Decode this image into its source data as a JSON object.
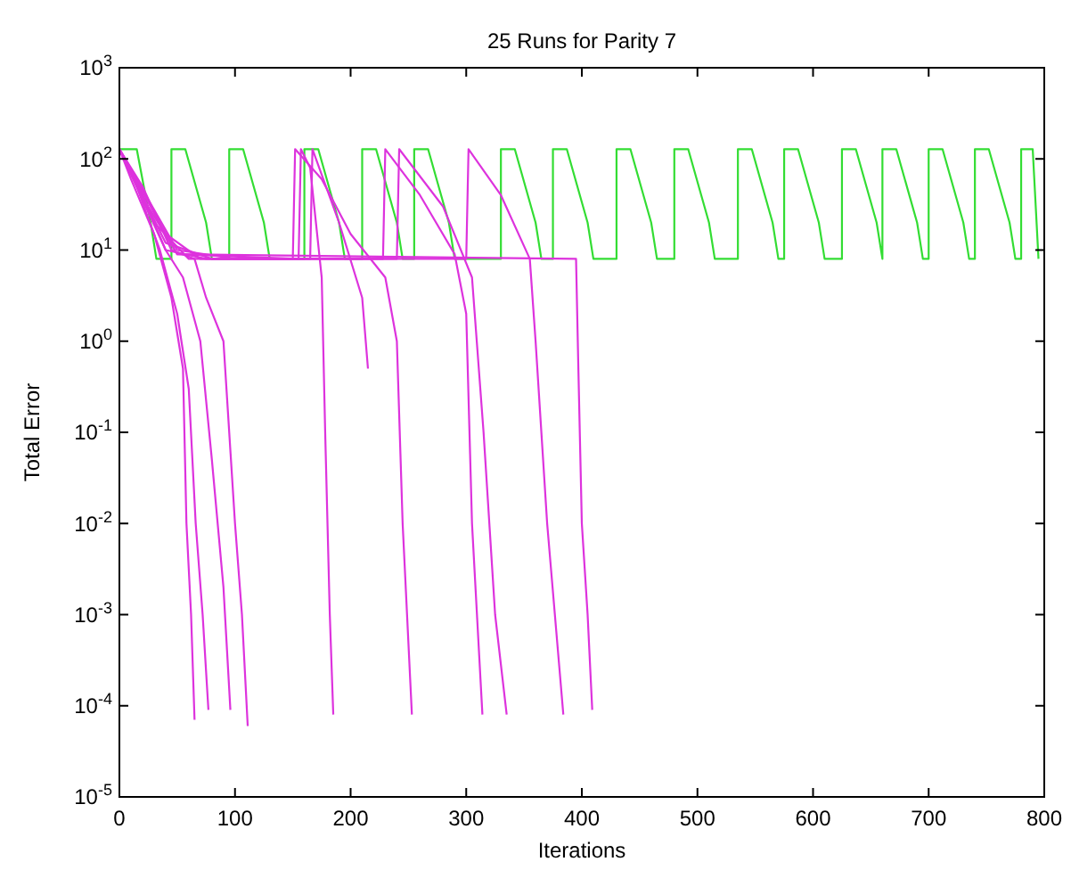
{
  "chart_data": {
    "type": "line",
    "title": "25 Runs for Parity 7",
    "xlabel": "Iterations",
    "ylabel": "Total Error",
    "log": "y",
    "grid": false,
    "marker": "none",
    "line_style": "solid",
    "xlim": [
      0,
      800
    ],
    "xticks": [
      0,
      100,
      200,
      300,
      400,
      500,
      600,
      700,
      800
    ],
    "ylim": [
      1e-05,
      1000
    ],
    "yticks": [
      {
        "value": 1e-05,
        "label": "10$^{-5}$"
      },
      {
        "value": 0.0001,
        "label": "10$^{-4}$"
      },
      {
        "value": 0.001,
        "label": "10$^{-3}$"
      },
      {
        "value": 0.01,
        "label": "10$^{-2}$"
      },
      {
        "value": 0.1,
        "label": "10$^{-1}$"
      },
      {
        "value": 1,
        "label": "10$^{0}$"
      },
      {
        "value": 10,
        "label": "10$^{1}$"
      },
      {
        "value": 100,
        "label": "10$^{2}$"
      },
      {
        "value": 1000,
        "label": "10$^{3}$"
      }
    ],
    "series": [
      {
        "color": "#33dd33",
        "x": [
          0,
          15,
          27,
          32,
          45,
          45,
          57,
          75,
          80,
          95,
          95,
          107,
          125,
          130,
          160,
          160,
          172,
          190,
          195,
          210,
          210,
          222,
          240,
          245,
          255,
          255,
          267,
          285,
          290,
          330,
          330,
          342,
          360,
          365,
          375,
          375,
          387,
          405,
          410,
          430,
          430,
          442,
          460,
          465,
          480,
          480,
          492,
          510,
          515,
          535,
          535,
          547,
          565,
          570,
          575,
          575,
          587,
          605,
          610,
          625,
          625,
          637,
          655,
          660,
          660,
          660,
          672,
          690,
          695,
          700,
          700,
          712,
          730,
          735,
          740,
          740,
          752,
          770,
          775,
          780,
          780,
          790,
          795
        ],
        "values": [
          128,
          128,
          20,
          8,
          8,
          128,
          128,
          20,
          8,
          8,
          128,
          128,
          20,
          8,
          8,
          128,
          128,
          20,
          8,
          8,
          128,
          128,
          20,
          8,
          8,
          128,
          128,
          20,
          8,
          8,
          128,
          128,
          20,
          8,
          8,
          128,
          128,
          20,
          8,
          8,
          128,
          128,
          20,
          8,
          8,
          128,
          128,
          20,
          8,
          8,
          128,
          128,
          20,
          8,
          8,
          128,
          128,
          20,
          8,
          8,
          128,
          128,
          20,
          8,
          8,
          128,
          128,
          20,
          8,
          8,
          128,
          128,
          20,
          8,
          8,
          128,
          128,
          20,
          8,
          8,
          128,
          128,
          8
        ]
      },
      {
        "color": "#dd33dd",
        "x": [
          0,
          10,
          30,
          45,
          55,
          58,
          62,
          65
        ],
        "values": [
          128,
          60,
          15,
          3,
          0.5,
          0.01,
          0.001,
          7e-05
        ]
      },
      {
        "color": "#dd33dd",
        "x": [
          0,
          15,
          35,
          50,
          60,
          66,
          72,
          77
        ],
        "values": [
          128,
          50,
          10,
          2,
          0.3,
          0.01,
          0.001,
          9e-05
        ]
      },
      {
        "color": "#dd33dd",
        "x": [
          0,
          20,
          40,
          55,
          70,
          80,
          90,
          96
        ],
        "values": [
          128,
          40,
          10,
          5,
          1,
          0.05,
          0.002,
          9e-05
        ]
      },
      {
        "color": "#dd33dd",
        "x": [
          0,
          20,
          45,
          65,
          75,
          90,
          100,
          106,
          111
        ],
        "values": [
          128,
          50,
          10,
          8,
          3,
          1,
          0.01,
          0.001,
          6e-05
        ]
      },
      {
        "color": "#dd33dd",
        "x": [
          0,
          25,
          50,
          155,
          157,
          165,
          175,
          178,
          182,
          185
        ],
        "values": [
          128,
          30,
          9,
          8,
          128,
          80,
          5,
          0.1,
          0.001,
          8e-05
        ]
      },
      {
        "color": "#dd33dd",
        "x": [
          0,
          30,
          60,
          150,
          152,
          175,
          200,
          230,
          240,
          245,
          253
        ],
        "values": [
          128,
          20,
          8,
          8,
          128,
          60,
          15,
          5,
          1,
          0.01,
          8e-05
        ]
      },
      {
        "color": "#dd33dd",
        "x": [
          0,
          40,
          70,
          228,
          230,
          260,
          290,
          300,
          305,
          314
        ],
        "values": [
          128,
          15,
          8,
          8,
          128,
          40,
          9,
          2,
          0.01,
          8e-05
        ]
      },
      {
        "color": "#dd33dd",
        "x": [
          0,
          40,
          80,
          240,
          242,
          280,
          305,
          315,
          325,
          335
        ],
        "values": [
          128,
          12,
          8,
          8,
          128,
          30,
          5,
          0.1,
          0.001,
          8e-05
        ]
      },
      {
        "color": "#dd33dd",
        "x": [
          0,
          50,
          100,
          300,
          302,
          330,
          355,
          360,
          370,
          384
        ],
        "values": [
          128,
          10,
          8,
          8,
          128,
          40,
          8,
          1,
          0.01,
          8e-05
        ]
      },
      {
        "color": "#dd33dd",
        "x": [
          0,
          50,
          395,
          397,
          400,
          405,
          409
        ],
        "values": [
          128,
          9,
          8,
          0.5,
          0.01,
          0.001,
          9e-05
        ]
      },
      {
        "color": "#dd33dd",
        "x": [
          0,
          40,
          75,
          165,
          167,
          190,
          210,
          215
        ],
        "values": [
          128,
          10,
          8,
          8,
          128,
          20,
          3,
          0.5
        ]
      }
    ]
  }
}
